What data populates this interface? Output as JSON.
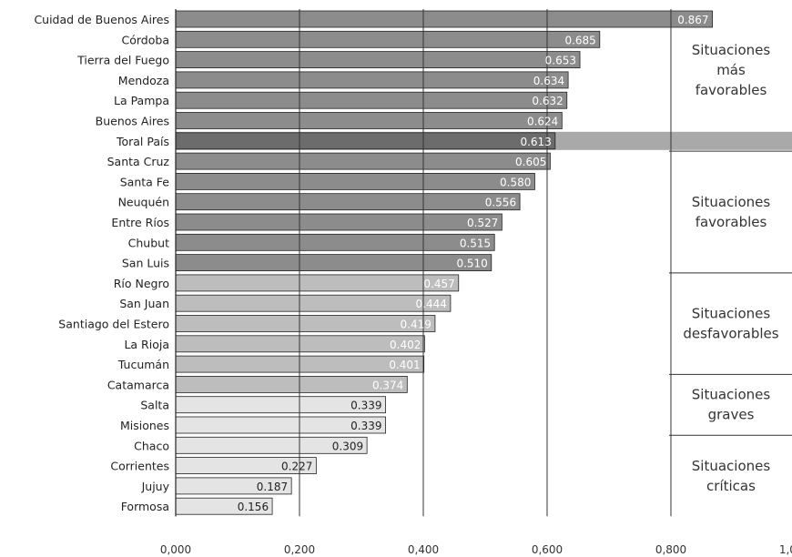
{
  "chart_data": {
    "type": "bar",
    "orientation": "horizontal",
    "categories": [
      "Cuidad de Buenos Aires",
      "Córdoba",
      "Tierra del Fuego",
      "Mendoza",
      "La Pampa",
      "Buenos Aires",
      "Toral País",
      "Santa Cruz",
      "Santa Fe",
      "Neuquén",
      "Entre Ríos",
      "Chubut",
      "San Luis",
      "Río Negro",
      "San Juan",
      "Santiago del Estero",
      "La Rioja",
      "Tucumán",
      "Catamarca",
      "Salta",
      "Misiones",
      "Chaco",
      "Corrientes",
      "Jujuy",
      "Formosa"
    ],
    "values": [
      0.867,
      0.685,
      0.653,
      0.634,
      0.632,
      0.624,
      0.613,
      0.605,
      0.58,
      0.556,
      0.527,
      0.515,
      0.51,
      0.457,
      0.444,
      0.419,
      0.402,
      0.401,
      0.374,
      0.339,
      0.339,
      0.309,
      0.227,
      0.187,
      0.156
    ],
    "value_labels": [
      "0.867",
      "0.685",
      "0.653",
      "0.634",
      "0.632",
      "0.624",
      "0.613",
      "0.605",
      "0.580",
      "0.556",
      "0.527",
      "0.515",
      "0.510",
      "0.457",
      "0.444",
      "0.419",
      "0.402",
      "0.401",
      "0.374",
      "0.339",
      "0.339",
      "0.309",
      "0.227",
      "0.187",
      "0.156"
    ],
    "highlight_category": "Toral País",
    "xlim": [
      0,
      1.0
    ],
    "xticks": [
      0,
      0.2,
      0.4,
      0.6,
      0.8,
      1.0
    ],
    "xtick_labels": [
      "0,000",
      "0,200",
      "0,400",
      "0,600",
      "0,800",
      "1,000"
    ],
    "grid": true,
    "bands": [
      {
        "label_lines": [
          "Situaciones",
          "más",
          "favorables"
        ],
        "from_category": "Cuidad de Buenos Aires",
        "to_category": "Buenos Aires"
      },
      {
        "label_lines": [
          "Situaciones",
          "favorables"
        ],
        "from_category": "Santa Cruz",
        "to_category": "San Luis"
      },
      {
        "label_lines": [
          "Situaciones",
          "desfavorables"
        ],
        "from_category": "Río Negro",
        "to_category": "Tucumán"
      },
      {
        "label_lines": [
          "Situaciones",
          "graves"
        ],
        "from_category": "Catamarca",
        "to_category": "Misiones"
      },
      {
        "label_lines": [
          "Situaciones",
          "críticas"
        ],
        "from_category": "Chaco",
        "to_category": "Formosa"
      }
    ],
    "colors": {
      "bar_light": "#e4e4e4",
      "bar_mid": "#bdbdbd",
      "bar_dark": "#8c8c8c",
      "bar_highlight": "#6c6c6c",
      "band_background": "#a9a9a9",
      "grid": "#333333",
      "label_on_dark": "#ffffff",
      "label_on_light": "#222222"
    }
  }
}
